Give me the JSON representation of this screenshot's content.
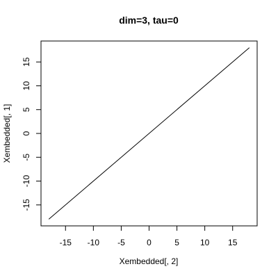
{
  "chart_data": {
    "type": "line",
    "title": "dim=3, tau=0",
    "xlabel": "Xembedded[, 2]",
    "ylabel": "Xembedded[, 1]",
    "xlim": [
      -19.4,
      19.4
    ],
    "ylim": [
      -19.4,
      19.4
    ],
    "x_ticks": [
      -15,
      -10,
      -5,
      0,
      5,
      10,
      15
    ],
    "y_ticks": [
      -15,
      -10,
      -5,
      0,
      5,
      10,
      15
    ],
    "grid": false,
    "series": [
      {
        "x": [
          -18,
          18
        ],
        "y": [
          -18,
          18
        ],
        "color": "#000000"
      }
    ]
  }
}
